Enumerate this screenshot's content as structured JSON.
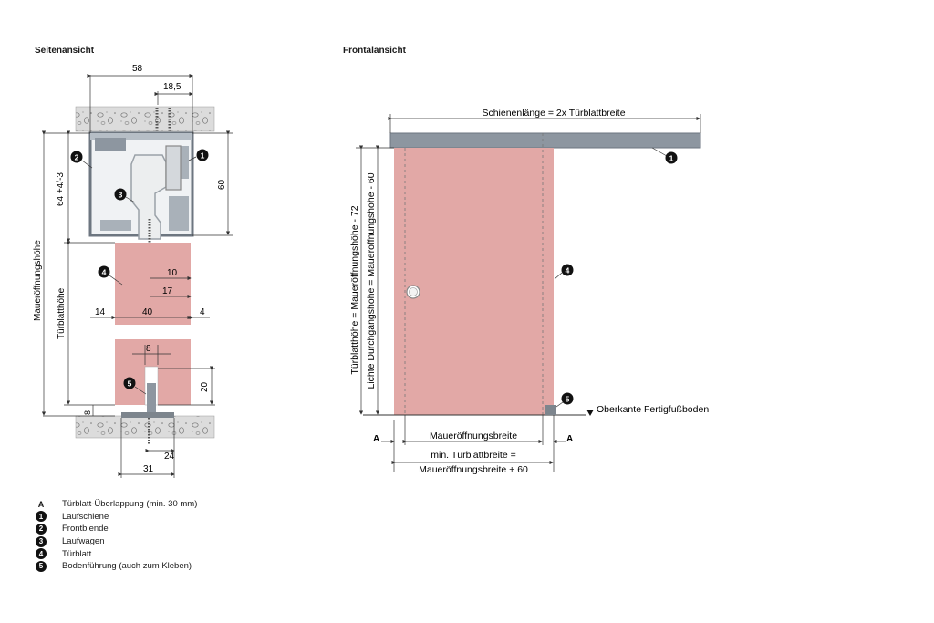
{
  "headings": {
    "side_view": "Seitenansicht",
    "front_view": "Frontalansicht"
  },
  "side_view": {
    "dim_58": "58",
    "dim_18_5": "18,5",
    "dim_64": "64 +4/-3",
    "dim_60": "60",
    "dim_opening_height": "Maueröffnungshöhe",
    "dim_door_height": "Türblatthöhe",
    "dim_10": "10",
    "dim_17": "17",
    "dim_14": "14",
    "dim_40": "40",
    "dim_4": "4",
    "dim_8_top": "8",
    "dim_20": "20",
    "dim_8_side": "8",
    "dim_24": "24",
    "dim_31": "31",
    "callouts": [
      "2",
      "1",
      "3",
      "4",
      "5"
    ]
  },
  "front_view": {
    "rail_length": "Schienenlänge = 2x Türblattbreite",
    "door_height_formula": "Türblatthöhe = Maueröffnungshöhe - 72",
    "clear_height_formula": "Lichte Durchgangshöhe = Maueröffnungshöhe - 60",
    "floor_label": "Oberkante Fertigfußboden",
    "opening_width": "Maueröffnungsbreite",
    "min_door_width_1": "min. Türblattbreite =",
    "min_door_width_2": "Maueröffnungsbreite + 60",
    "overlap_marker": "A",
    "callouts": [
      "1",
      "4",
      "5"
    ]
  },
  "legend": [
    {
      "key": "A",
      "type": "letter",
      "text": "Türblatt-Überlappung (min. 30 mm)"
    },
    {
      "key": "1",
      "type": "dot",
      "text": "Laufschiene"
    },
    {
      "key": "2",
      "type": "dot",
      "text": "Frontblende"
    },
    {
      "key": "3",
      "type": "dot",
      "text": "Laufwagen"
    },
    {
      "key": "4",
      "type": "dot",
      "text": "Türblatt"
    },
    {
      "key": "5",
      "type": "dot",
      "text": "Bodenführung (auch zum Kleben)"
    }
  ],
  "colors": {
    "door": "#e2a8a6",
    "door_light": "#e9b8b5",
    "rail": "#8d96a0",
    "profile_fill": "#d7dce0",
    "concrete": "#d9d9d9"
  }
}
